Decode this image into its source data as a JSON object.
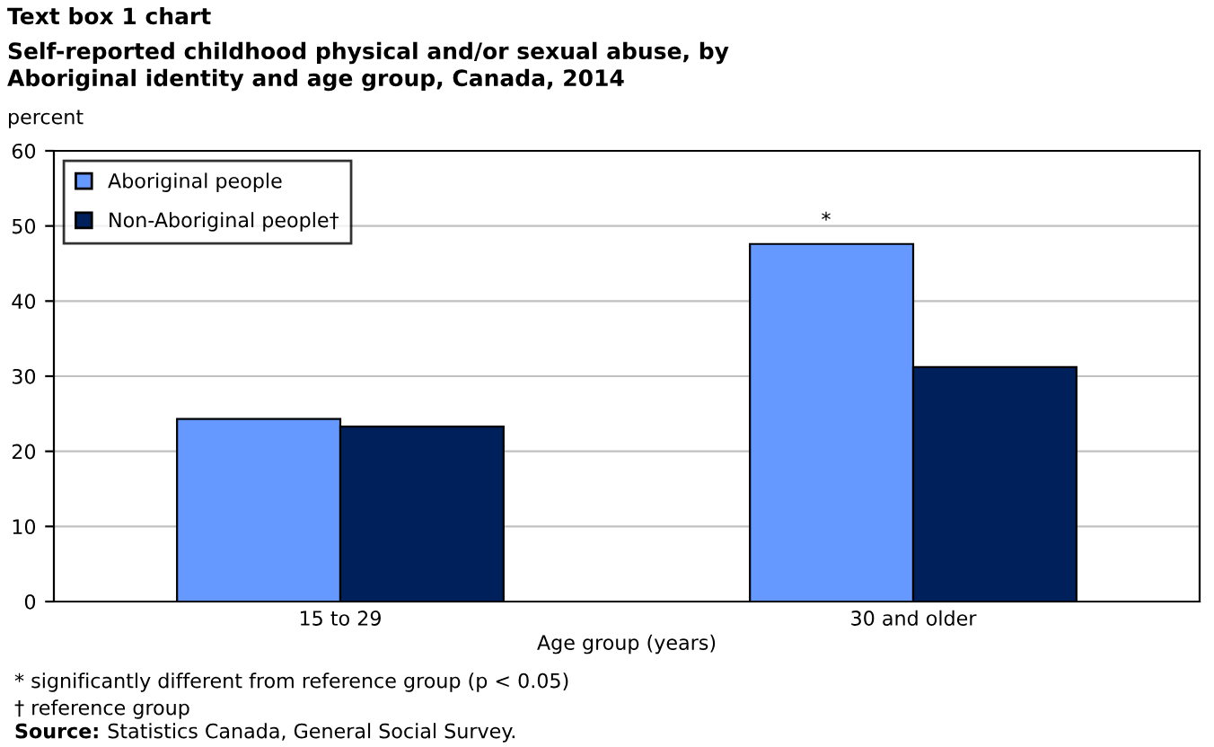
{
  "chart_data": {
    "type": "bar",
    "title": "Text box 1 chart",
    "subtitle": "Self-reported childhood physical and/or sexual abuse, by\nAboriginal identity and age group, Canada, 2014",
    "ylabel": "percent",
    "xlabel": "Age group (years)",
    "categories": [
      "15 to 29",
      "30 and older"
    ],
    "series": [
      {
        "name": "Aboriginal people",
        "color": "#6699ff",
        "values": [
          24.3,
          47.6
        ]
      },
      {
        "name": "Non-Aboriginal people†",
        "color": "#00205b",
        "values": [
          23.3,
          31.2
        ]
      }
    ],
    "ylim": [
      0,
      60
    ],
    "yticks": [
      0,
      10,
      20,
      30,
      40,
      50,
      60
    ],
    "grid": "y",
    "legend": "top left",
    "annotations": [
      "*",
      "* significantly different from reference group (p < 0.05)",
      "† reference group",
      "Source:",
      "Statistics Canada, General Social Survey."
    ]
  }
}
